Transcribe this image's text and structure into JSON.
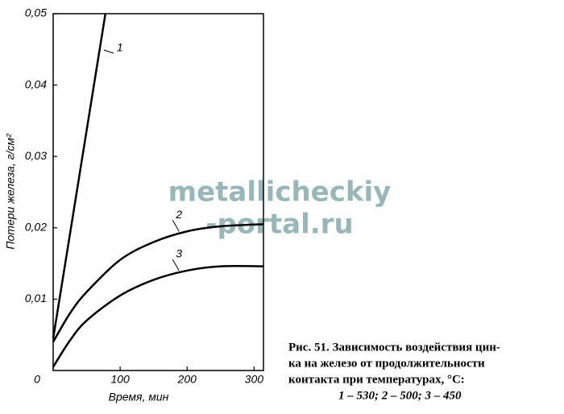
{
  "chart_data": {
    "type": "line",
    "xlabel": "Время, мин",
    "ylabel": "Потери железа, г/см²",
    "xlim": [
      0,
      314
    ],
    "ylim": [
      0,
      0.05
    ],
    "xticks": [
      0,
      100,
      200,
      300
    ],
    "yticks": [
      {
        "value": 0.01,
        "label": "0,01"
      },
      {
        "value": 0.02,
        "label": "0,02"
      },
      {
        "value": 0.03,
        "label": "0,03"
      },
      {
        "value": 0.04,
        "label": "0,04"
      },
      {
        "value": 0.05,
        "label": "0,05"
      }
    ],
    "series": [
      {
        "name": "1",
        "color": "#000000",
        "x": [
          0,
          78
        ],
        "values": [
          0.0045,
          0.05
        ]
      },
      {
        "name": "2",
        "color": "#000000",
        "x": [
          0,
          25,
          50,
          100,
          150,
          200,
          250,
          314
        ],
        "values": [
          0.004,
          0.008,
          0.011,
          0.0155,
          0.018,
          0.0195,
          0.0202,
          0.0205
        ]
      },
      {
        "name": "3",
        "color": "#000000",
        "x": [
          0,
          25,
          50,
          100,
          150,
          200,
          250,
          314
        ],
        "values": [
          0.0005,
          0.0042,
          0.007,
          0.0105,
          0.0127,
          0.014,
          0.0146,
          0.0146
        ]
      }
    ],
    "caption": [
      "Рис. 51. Зависимость воздействия цин-",
      "ка на железо от продолжительности",
      "контакта при температурах, °C:",
      "1 – 530; 2 – 500; 3 – 450"
    ],
    "watermark": [
      "metallicheckiy",
      "-portal.ru"
    ]
  }
}
